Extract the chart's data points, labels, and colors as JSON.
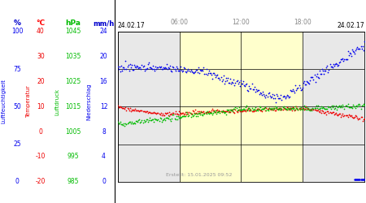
{
  "title_left": "24.02.17",
  "title_right": "24.02.17",
  "xlabel_times": [
    "06:00",
    "12:00",
    "18:00"
  ],
  "created_text": "Erstellt: 15.01.2025 09:52",
  "bg_day_color": "#ffffcc",
  "bg_night_color": "#e8e8e8",
  "axis_labels_top": [
    "%",
    "°C",
    "hPa",
    "mm/h"
  ],
  "axis_labels_top_colors": [
    "#0000cc",
    "#ff0000",
    "#00bb00",
    "#0000cc"
  ],
  "y_ticks_lf": [
    0,
    25,
    50,
    75,
    100
  ],
  "y_ticks_temp": [
    -20,
    -10,
    0,
    10,
    20,
    30,
    40
  ],
  "y_ticks_hpa": [
    985,
    995,
    1005,
    1015,
    1025,
    1035,
    1045
  ],
  "y_ticks_mm": [
    0,
    4,
    8,
    12,
    16,
    20,
    24
  ],
  "blue_color": "#0000ee",
  "red_color": "#ee0000",
  "green_color": "#00bb00",
  "rotated_labels": [
    "Luftfeuchtigkeit",
    "Temperatur",
    "Luftdruck",
    "Niederschlag"
  ],
  "rotated_label_colors": [
    "#0000ee",
    "#ee0000",
    "#00bb00",
    "#0000ee"
  ]
}
